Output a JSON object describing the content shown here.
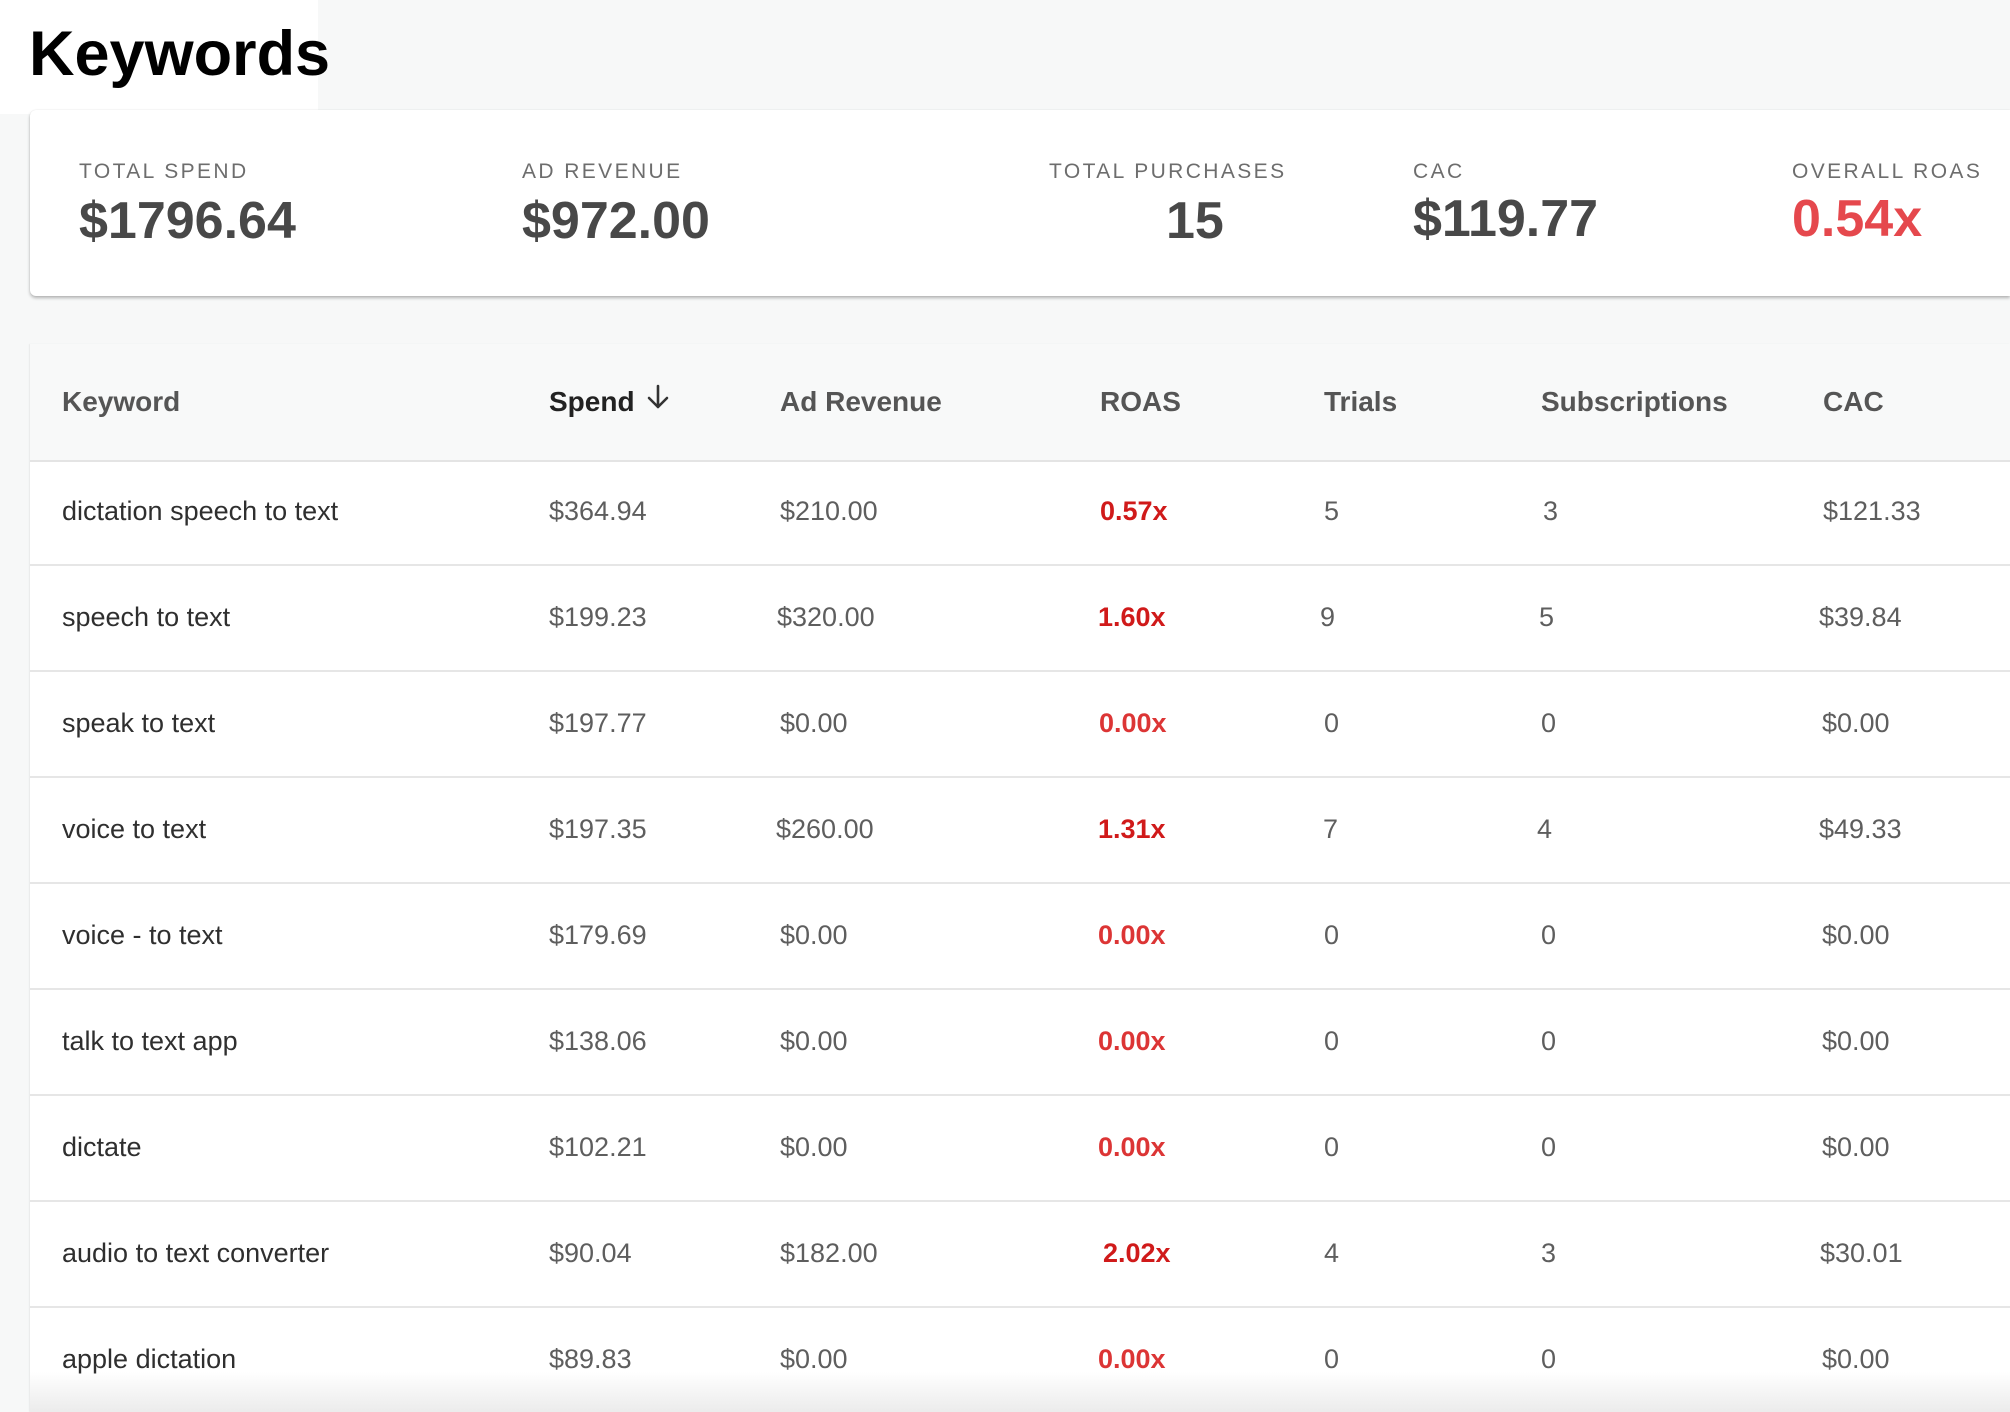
{
  "page": {
    "title": "Keywords"
  },
  "stats": [
    {
      "label": "TOTAL SPEND",
      "value": "$1796.64",
      "negative": false
    },
    {
      "label": "AD REVENUE",
      "value": "$972.00",
      "negative": false
    },
    {
      "label": "TOTAL PURCHASES",
      "value": "15",
      "negative": false
    },
    {
      "label": "CAC",
      "value": "$119.77",
      "negative": false
    },
    {
      "label": "OVERALL ROAS",
      "value": "0.54x",
      "negative": true
    }
  ],
  "table": {
    "sort": {
      "column": "Spend",
      "direction": "descending",
      "icon": "arrow-down-icon"
    },
    "columns": [
      "Keyword",
      "Spend",
      "Ad Revenue",
      "ROAS",
      "Trials",
      "Subscriptions",
      "CAC"
    ],
    "rows": [
      {
        "keyword": "dictation speech to text",
        "spend": "$364.94",
        "ad_revenue": "$210.00",
        "roas": "0.57x",
        "trials": "5",
        "subscriptions": "3",
        "cac": "$121.33"
      },
      {
        "keyword": "speech to text",
        "spend": "$199.23",
        "ad_revenue": "$320.00",
        "roas": "1.60x",
        "trials": "9",
        "subscriptions": "5",
        "cac": "$39.84"
      },
      {
        "keyword": "speak to text",
        "spend": "$197.77",
        "ad_revenue": "$0.00",
        "roas": "0.00x",
        "trials": "0",
        "subscriptions": "0",
        "cac": "$0.00"
      },
      {
        "keyword": "voice to text",
        "spend": "$197.35",
        "ad_revenue": "$260.00",
        "roas": "1.31x",
        "trials": "7",
        "subscriptions": "4",
        "cac": "$49.33"
      },
      {
        "keyword": "voice - to text",
        "spend": "$179.69",
        "ad_revenue": "$0.00",
        "roas": "0.00x",
        "trials": "0",
        "subscriptions": "0",
        "cac": "$0.00"
      },
      {
        "keyword": "talk to text app",
        "spend": "$138.06",
        "ad_revenue": "$0.00",
        "roas": "0.00x",
        "trials": "0",
        "subscriptions": "0",
        "cac": "$0.00"
      },
      {
        "keyword": "dictate",
        "spend": "$102.21",
        "ad_revenue": "$0.00",
        "roas": "0.00x",
        "trials": "0",
        "subscriptions": "0",
        "cac": "$0.00"
      },
      {
        "keyword": "audio to text converter",
        "spend": "$90.04",
        "ad_revenue": "$182.00",
        "roas": "2.02x",
        "trials": "4",
        "subscriptions": "3",
        "cac": "$30.01"
      },
      {
        "keyword": "apple dictation",
        "spend": "$89.83",
        "ad_revenue": "$0.00",
        "roas": "0.00x",
        "trials": "0",
        "subscriptions": "0",
        "cac": "$0.00"
      }
    ]
  },
  "colors": {
    "negative_accent": "#e5484d",
    "roas_text": "#d01a1a",
    "header_background": "#f8f9f9"
  }
}
